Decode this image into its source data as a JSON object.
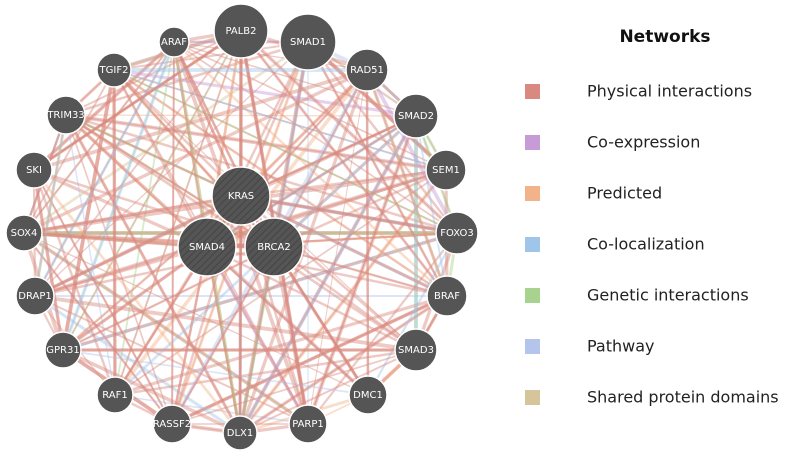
{
  "network": {
    "nodes": [
      {
        "label": "PALB2"
      },
      {
        "label": "SMAD1"
      },
      {
        "label": "ARAF"
      },
      {
        "label": "TGIF2"
      },
      {
        "label": "RAD51"
      },
      {
        "label": "TRIM33"
      },
      {
        "label": "SMAD2"
      },
      {
        "label": "SKI"
      },
      {
        "label": "SEM1"
      },
      {
        "label": "KRAS"
      },
      {
        "label": "SOX4"
      },
      {
        "label": "FOXO3"
      },
      {
        "label": "SMAD4"
      },
      {
        "label": "BRCA2"
      },
      {
        "label": "DRAP1"
      },
      {
        "label": "BRAF"
      },
      {
        "label": "GPR31"
      },
      {
        "label": "SMAD3"
      },
      {
        "label": "RAF1"
      },
      {
        "label": "DMC1"
      },
      {
        "label": "RASSF2"
      },
      {
        "label": "DLX1"
      },
      {
        "label": "PARP1"
      }
    ]
  },
  "legend": {
    "title": "Networks",
    "items": [
      {
        "label": "Physical interactions",
        "color": "#d9897f"
      },
      {
        "label": "Co-expression",
        "color": "#c79bd6"
      },
      {
        "label": "Predicted",
        "color": "#f3b38a"
      },
      {
        "label": "Co-localization",
        "color": "#9fc5e8"
      },
      {
        "label": "Genetic interactions",
        "color": "#a8d38e"
      },
      {
        "label": "Pathway",
        "color": "#b4c4ec"
      },
      {
        "label": "Shared protein domains",
        "color": "#d6c59a"
      }
    ]
  }
}
